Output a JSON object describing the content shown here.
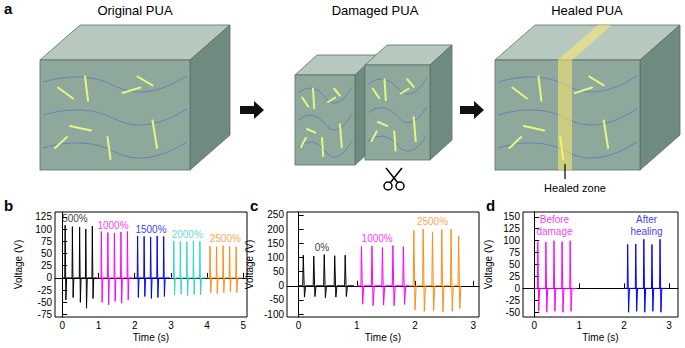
{
  "diagram": {
    "panel": "a",
    "stages": [
      "Original PUA",
      "Damaged PUA",
      "Healed PUA"
    ],
    "callout": "Healed zone"
  },
  "chart_data": [
    {
      "type": "line",
      "panel": "b",
      "xlabel": "Time (s)",
      "ylabel": "Voltage (V)",
      "grid": false,
      "xlim": [
        -0.2,
        5.1
      ],
      "ylim": [
        -80,
        135
      ],
      "xticks": [
        0,
        1,
        2,
        3,
        4,
        5
      ],
      "yticks": [
        -75,
        -50,
        -25,
        0,
        25,
        50,
        75,
        100,
        125
      ],
      "series": [
        {
          "color": "#000000",
          "x": [
            0,
            0.07,
            0.08,
            0.1,
            0.12,
            0.27,
            0.28,
            0.3,
            0.32,
            0.47,
            0.48,
            0.5,
            0.52,
            0.64,
            0.65,
            0.67,
            0.69,
            0.82,
            0.83,
            0.85,
            0.87,
            0.97
          ],
          "values": [
            0,
            0,
            108,
            -45,
            0,
            0,
            105,
            -40,
            0,
            0,
            104,
            -50,
            0,
            0,
            100,
            -62,
            0,
            0,
            106,
            -42,
            0,
            0
          ]
        },
        {
          "color": "#ff00ff",
          "x": [
            1,
            1.07,
            1.08,
            1.1,
            1.12,
            1.25,
            1.26,
            1.28,
            1.3,
            1.43,
            1.44,
            1.46,
            1.48,
            1.61,
            1.62,
            1.64,
            1.66,
            1.79,
            1.8,
            1.82,
            1.84,
            1.97
          ],
          "values": [
            0,
            0,
            95,
            -50,
            0,
            0,
            93,
            -55,
            0,
            0,
            92,
            -48,
            0,
            0,
            94,
            -52,
            0,
            0,
            95,
            -45,
            0,
            0
          ]
        },
        {
          "color": "#0000ff",
          "x": [
            2,
            2.07,
            2.08,
            2.1,
            2.12,
            2.25,
            2.26,
            2.28,
            2.3,
            2.43,
            2.44,
            2.46,
            2.48,
            2.61,
            2.62,
            2.64,
            2.66,
            2.79,
            2.8,
            2.82,
            2.84,
            2.97
          ],
          "values": [
            0,
            0,
            86,
            -40,
            0,
            0,
            85,
            -38,
            0,
            0,
            84,
            -42,
            0,
            0,
            86,
            -40,
            0,
            0,
            85,
            -38,
            0,
            0
          ]
        },
        {
          "color": "#33d6c8",
          "x": [
            3,
            3.07,
            3.08,
            3.1,
            3.12,
            3.25,
            3.26,
            3.28,
            3.3,
            3.43,
            3.44,
            3.46,
            3.48,
            3.61,
            3.62,
            3.64,
            3.66,
            3.79,
            3.8,
            3.82,
            3.84,
            3.97
          ],
          "values": [
            0,
            0,
            76,
            -35,
            0,
            0,
            75,
            -33,
            0,
            0,
            74,
            -36,
            0,
            0,
            76,
            -34,
            0,
            0,
            75,
            -35,
            0,
            0
          ]
        },
        {
          "color": "#ff8c1a",
          "x": [
            4,
            4.07,
            4.08,
            4.1,
            4.12,
            4.25,
            4.26,
            4.28,
            4.3,
            4.43,
            4.44,
            4.46,
            4.48,
            4.61,
            4.62,
            4.64,
            4.66,
            4.79,
            4.8,
            4.82,
            4.84,
            4.97
          ],
          "values": [
            0,
            0,
            65,
            -30,
            0,
            0,
            64,
            -32,
            0,
            0,
            66,
            -30,
            0,
            0,
            65,
            -28,
            0,
            0,
            64,
            -30,
            0,
            0
          ]
        }
      ],
      "annotations": [
        {
          "text": "500%",
          "x": 0.35,
          "y": 122,
          "color": "#000000"
        },
        {
          "text": "1000%",
          "x": 1.4,
          "y": 108,
          "color": "#ff00ff"
        },
        {
          "text": "1500%",
          "x": 2.45,
          "y": 100,
          "color": "#0000ff"
        },
        {
          "text": "2000%",
          "x": 3.45,
          "y": 89,
          "color": "#33d6c8"
        },
        {
          "text": "2500%",
          "x": 4.5,
          "y": 80,
          "color": "#ff8c1a"
        }
      ]
    },
    {
      "type": "line",
      "panel": "c",
      "xlabel": "Time (s)",
      "ylabel": "Voltage (V)",
      "grid": false,
      "xlim": [
        -0.2,
        3.1
      ],
      "ylim": [
        -110,
        260
      ],
      "xticks": [
        0,
        1,
        2,
        3
      ],
      "yticks": [
        -100,
        -50,
        0,
        50,
        100,
        150,
        200,
        250
      ],
      "series": [
        {
          "color": "#000000",
          "x": [
            0,
            0.07,
            0.08,
            0.1,
            0.12,
            0.25,
            0.26,
            0.28,
            0.3,
            0.43,
            0.44,
            0.46,
            0.48,
            0.61,
            0.62,
            0.64,
            0.66,
            0.79,
            0.8,
            0.82,
            0.84,
            0.95
          ],
          "values": [
            0,
            0,
            108,
            -40,
            0,
            0,
            105,
            -38,
            0,
            0,
            110,
            -42,
            0,
            0,
            106,
            -40,
            0,
            0,
            108,
            -38,
            0,
            0
          ]
        },
        {
          "color": "#ff00ff",
          "x": [
            1,
            1.07,
            1.08,
            1.1,
            1.12,
            1.25,
            1.26,
            1.28,
            1.3,
            1.43,
            1.44,
            1.46,
            1.48,
            1.61,
            1.62,
            1.64,
            1.66,
            1.79,
            1.8,
            1.82,
            1.84,
            1.9
          ],
          "values": [
            0,
            0,
            138,
            -65,
            0,
            0,
            140,
            -70,
            0,
            0,
            135,
            -68,
            0,
            0,
            142,
            -70,
            0,
            0,
            138,
            -66,
            0,
            0
          ]
        },
        {
          "color": "#ff8c1a",
          "x": [
            1.9,
            1.97,
            1.98,
            2.0,
            2.02,
            2.13,
            2.14,
            2.16,
            2.18,
            2.29,
            2.3,
            2.32,
            2.34,
            2.45,
            2.46,
            2.48,
            2.5,
            2.61,
            2.62,
            2.64,
            2.66,
            2.74,
            2.75,
            2.77,
            2.79
          ],
          "values": [
            0,
            0,
            195,
            -85,
            0,
            0,
            200,
            -90,
            0,
            0,
            190,
            -88,
            0,
            0,
            198,
            -92,
            0,
            0,
            200,
            -90,
            0,
            0,
            175,
            -80,
            0
          ]
        }
      ],
      "annotations": [
        {
          "text": "0%",
          "x": 0.4,
          "y": 135,
          "color": "#000000"
        },
        {
          "text": "1000%",
          "x": 1.35,
          "y": 165,
          "color": "#ff00ff"
        },
        {
          "text": "2500%",
          "x": 2.3,
          "y": 225,
          "color": "#ff8c1a"
        }
      ]
    },
    {
      "type": "line",
      "panel": "d",
      "xlabel": "Time (s)",
      "ylabel": "Voltage (V)",
      "grid": false,
      "xlim": [
        -0.25,
        3.2
      ],
      "ylim": [
        -60,
        160
      ],
      "xticks": [
        0,
        1,
        2,
        3
      ],
      "yticks": [
        -50,
        -25,
        0,
        25,
        50,
        75,
        100,
        125,
        150
      ],
      "series": [
        {
          "color": "#ff00ff",
          "x": [
            0,
            0.07,
            0.08,
            0.1,
            0.12,
            0.25,
            0.26,
            0.28,
            0.3,
            0.43,
            0.44,
            0.46,
            0.48,
            0.61,
            0.62,
            0.64,
            0.66,
            0.79,
            0.8,
            0.82,
            0.84,
            0.95
          ],
          "values": [
            0,
            0,
            98,
            -48,
            0,
            0,
            97,
            -50,
            0,
            0,
            100,
            -48,
            0,
            0,
            98,
            -50,
            0,
            0,
            100,
            -48,
            0,
            0
          ]
        },
        {
          "color": "#0000ff",
          "x": [
            2,
            2.07,
            2.08,
            2.1,
            2.12,
            2.25,
            2.26,
            2.28,
            2.3,
            2.43,
            2.44,
            2.46,
            2.48,
            2.61,
            2.62,
            2.64,
            2.66,
            2.79,
            2.8,
            2.82,
            2.84,
            2.95
          ],
          "values": [
            0,
            0,
            92,
            -50,
            0,
            0,
            93,
            -48,
            0,
            0,
            103,
            -50,
            0,
            0,
            92,
            -48,
            0,
            0,
            103,
            -50,
            0,
            0
          ]
        }
      ],
      "annotations": [
        {
          "text": "Before\ndamage",
          "x": 0.45,
          "y": 132,
          "color": "#ff00ff"
        },
        {
          "text": "After\nhealing",
          "x": 2.5,
          "y": 132,
          "color": "#0000ff"
        }
      ]
    }
  ]
}
